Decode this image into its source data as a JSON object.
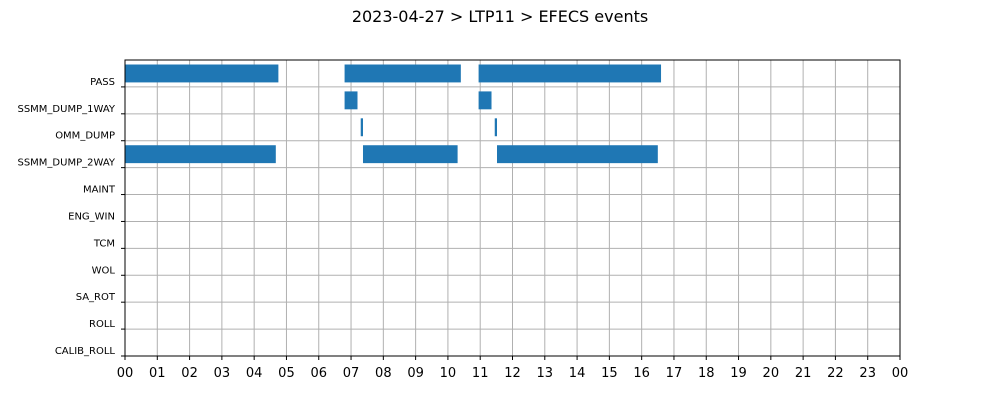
{
  "chart_data": {
    "type": "bar",
    "orientation": "horizontal-timeline",
    "title": "2023-04-27 > LTP11 > EFECS events",
    "xlabel": "",
    "ylabel": "",
    "x_unit": "hour",
    "xlim": [
      0,
      24
    ],
    "x_tick_labels": [
      "00",
      "01",
      "02",
      "03",
      "04",
      "05",
      "06",
      "07",
      "08",
      "09",
      "10",
      "11",
      "12",
      "13",
      "14",
      "15",
      "16",
      "17",
      "18",
      "19",
      "20",
      "21",
      "22",
      "23",
      "00"
    ],
    "categories": [
      "PASS",
      "SSMM_DUMP_1WAY",
      "OMM_DUMP",
      "SSMM_DUMP_2WAY",
      "MAINT",
      "ENG_WIN",
      "TCM",
      "WOL",
      "SA_ROT",
      "ROLL",
      "CALIB_ROLL"
    ],
    "grid": true,
    "bar_color": "#1f77b4",
    "events": [
      {
        "category": "PASS",
        "start": 0.0,
        "end": 4.75
      },
      {
        "category": "PASS",
        "start": 6.8,
        "end": 10.4
      },
      {
        "category": "PASS",
        "start": 10.95,
        "end": 16.6
      },
      {
        "category": "SSMM_DUMP_1WAY",
        "start": 6.8,
        "end": 7.2
      },
      {
        "category": "SSMM_DUMP_1WAY",
        "start": 10.95,
        "end": 11.35
      },
      {
        "category": "OMM_DUMP",
        "start": 7.3,
        "end": 7.37
      },
      {
        "category": "OMM_DUMP",
        "start": 11.45,
        "end": 11.52
      },
      {
        "category": "SSMM_DUMP_2WAY",
        "start": 0.0,
        "end": 4.67
      },
      {
        "category": "SSMM_DUMP_2WAY",
        "start": 7.37,
        "end": 10.3
      },
      {
        "category": "SSMM_DUMP_2WAY",
        "start": 11.52,
        "end": 16.5
      }
    ]
  }
}
